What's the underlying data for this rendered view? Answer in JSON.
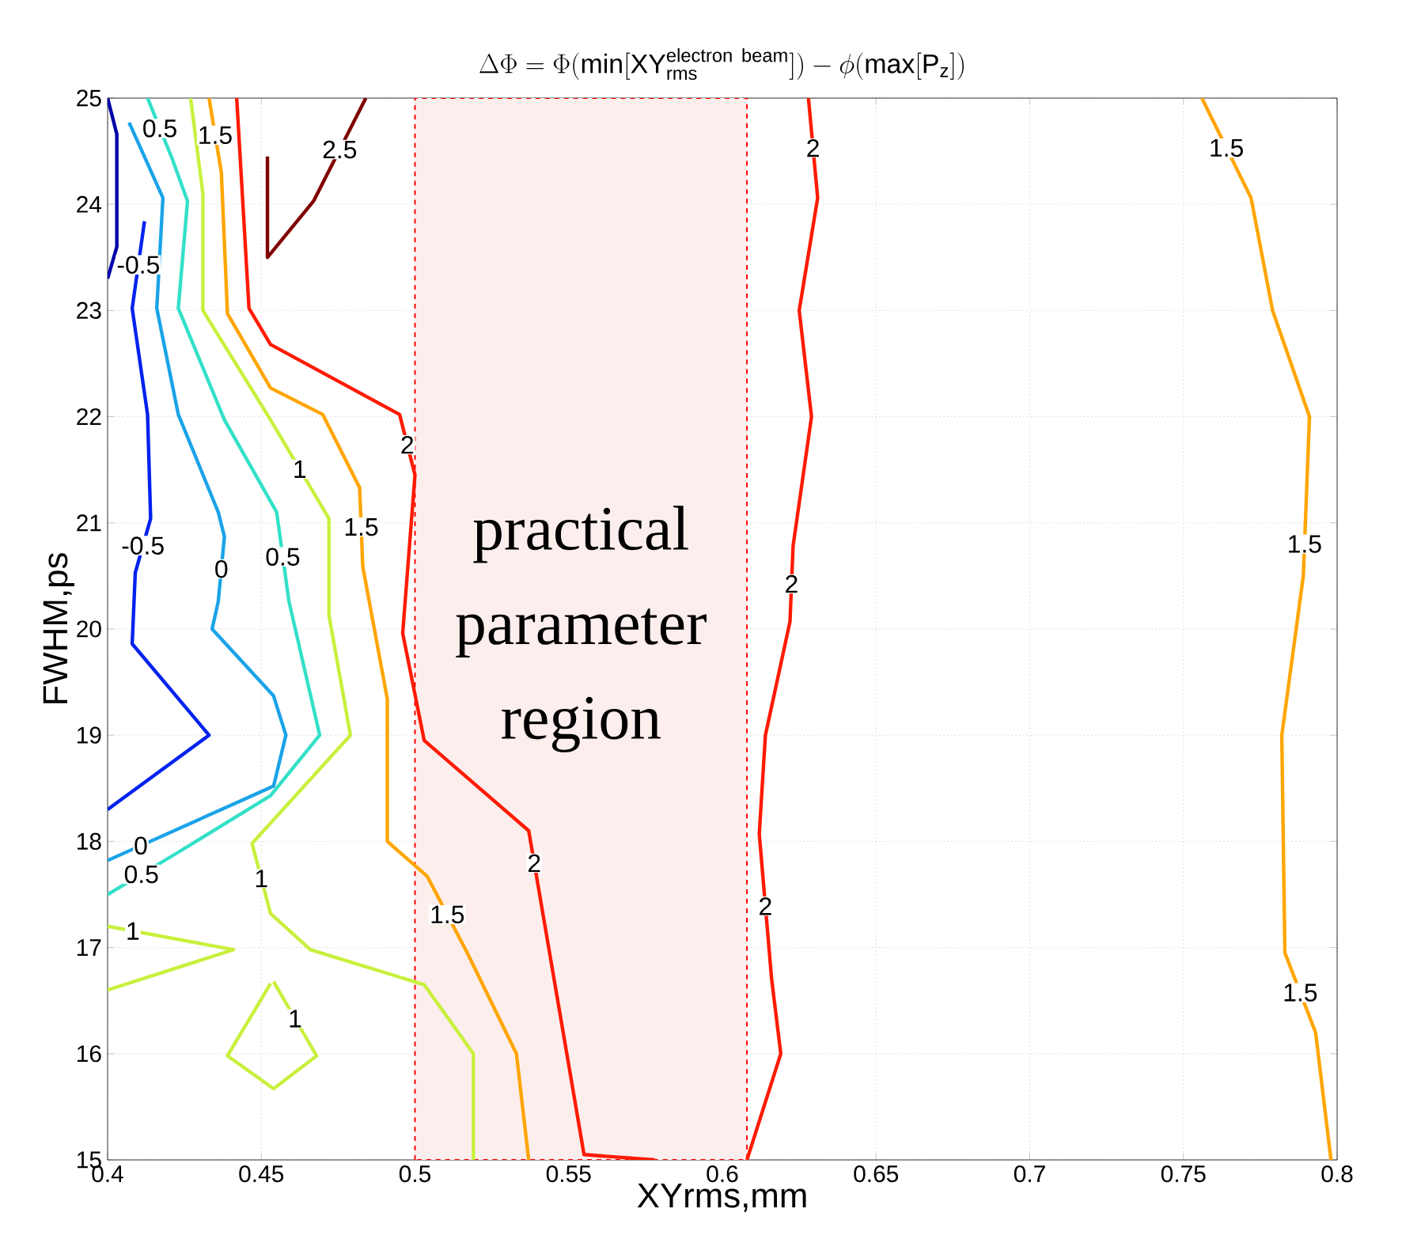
{
  "chart_data": {
    "type": "line",
    "title": "\\Delta\\Phi=\\Phi(\\mathrm{min}[\\mathrm{XY}_{\\mathrm{rms}}^{\\mathrm{electron\\ beam}}])-\\phi(\\mathrm{max}[\\mathrm{P}_{\\mathrm{z}}])",
    "xlabel": "XYrms,mm",
    "ylabel": "FWHM,ps",
    "xlim": [
      0.4,
      0.8
    ],
    "ylim": [
      15,
      25
    ],
    "xticks": [
      0.4,
      0.45,
      0.5,
      0.55,
      0.6,
      0.65,
      0.7,
      0.75,
      0.8
    ],
    "yticks": [
      15,
      16,
      17,
      18,
      19,
      20,
      21,
      22,
      23,
      24,
      25
    ],
    "grid": true,
    "marker": "none",
    "line_style": "solid",
    "series": [
      {
        "color": "#0000aa",
        "x": [
          0.4,
          0.403,
          0.403,
          0.4
        ],
        "values": [
          23.3,
          23.6,
          24.66,
          25
        ]
      },
      {
        "color": "#0022ee",
        "x": [
          0.412,
          0.408,
          0.413,
          0.414,
          0.409,
          0.408,
          0.433,
          0.4
        ],
        "values": [
          23.84,
          23.02,
          22.02,
          21.04,
          20.53,
          19.86,
          19.0,
          18.3
        ]
      },
      {
        "color": "#1aa3e8",
        "x": [
          0.407,
          0.418,
          0.416,
          0.423,
          0.436,
          0.438,
          0.436,
          0.434,
          0.454,
          0.458,
          0.454,
          0.4
        ],
        "values": [
          24.77,
          24.06,
          23.02,
          22.02,
          21.1,
          20.87,
          20.26,
          20.0,
          19.37,
          19.0,
          18.52,
          17.82
        ]
      },
      {
        "color": "#33e0c8",
        "x": [
          0.413,
          0.421,
          0.426,
          0.423,
          0.438,
          0.455,
          0.459,
          0.469,
          0.453,
          0.422,
          0.4
        ],
        "values": [
          25,
          24.43,
          24.03,
          23.02,
          21.97,
          21.1,
          20.26,
          19.0,
          18.43,
          17.88,
          17.5
        ]
      },
      {
        "color": "#c8f03c",
        "x": [
          0.427,
          0.431,
          0.431,
          0.453,
          0.472,
          0.472,
          0.479,
          0.447,
          0.453,
          0.466,
          0.503,
          0.519,
          0.519
        ],
        "values": [
          25,
          24.1,
          23.0,
          21.97,
          21.04,
          20.13,
          19.0,
          17.98,
          17.32,
          16.98,
          16.65,
          16.0,
          15
        ]
      },
      {
        "color": "#c8f03c",
        "x": [
          0.4,
          0.441,
          0.4
        ],
        "values": [
          17.2,
          16.98,
          16.6
        ]
      },
      {
        "color": "#c8f03c",
        "x": [
          0.454,
          0.468,
          0.454,
          0.439,
          0.453
        ],
        "values": [
          16.68,
          15.98,
          15.67,
          15.98,
          16.66
        ]
      },
      {
        "color": "#ffa500",
        "x": [
          0.433,
          0.437,
          0.439,
          0.453,
          0.47,
          0.482,
          0.483,
          0.491,
          0.491,
          0.504,
          0.517,
          0.533,
          0.537
        ],
        "values": [
          25,
          24.3,
          22.97,
          22.27,
          22.02,
          21.33,
          20.59,
          19.34,
          18.0,
          17.67,
          16.95,
          16.0,
          15
        ]
      },
      {
        "color": "#ffa500",
        "x": [
          0.756,
          0.772,
          0.779,
          0.791,
          0.789,
          0.782,
          0.783,
          0.793,
          0.798
        ],
        "values": [
          25,
          24.06,
          23.0,
          22.0,
          20.5,
          19.0,
          16.95,
          16.2,
          15
        ]
      },
      {
        "color": "#ff1a00",
        "x": [
          0.442,
          0.446,
          0.453,
          0.495,
          0.5,
          0.496,
          0.503,
          0.537,
          0.555,
          0.578
        ],
        "values": [
          25,
          23.02,
          22.68,
          22.02,
          21.45,
          19.96,
          18.95,
          18.1,
          15.05,
          15
        ]
      },
      {
        "color": "#ff1a00",
        "x": [
          0.628,
          0.631,
          0.625,
          0.629,
          0.623,
          0.622,
          0.614,
          0.612,
          0.616,
          0.619,
          0.608
        ],
        "values": [
          25,
          24.06,
          23.0,
          22.0,
          20.78,
          20.07,
          19.0,
          18.07,
          16.71,
          16.0,
          15
        ]
      },
      {
        "color": "#800000",
        "x": [
          0.484,
          0.467,
          0.452,
          0.452
        ],
        "values": [
          25,
          24.03,
          23.5,
          24.45
        ]
      }
    ],
    "bands": [
      {
        "axis": "x",
        "from": 0.5,
        "to": 0.608,
        "label": "practical parameter region",
        "color": "#fdeeee"
      }
    ],
    "annotations": [
      {
        "text": "2",
        "x": 0.4975,
        "y": 21.735
      },
      {
        "text": "1.5",
        "x": 0.4825,
        "y": 20.96
      },
      {
        "text": "1",
        "x": 0.4625,
        "y": 21.505
      },
      {
        "text": "0.5",
        "x": 0.457,
        "y": 20.68
      },
      {
        "text": "0",
        "x": 0.437,
        "y": 20.565
      },
      {
        "text": "-0.5",
        "x": 0.4115,
        "y": 20.785
      },
      {
        "text": "0",
        "x": 0.4108,
        "y": 17.96
      },
      {
        "text": "0.5",
        "x": 0.411,
        "y": 17.69
      },
      {
        "text": "1",
        "x": 0.4082,
        "y": 17.156
      },
      {
        "text": "1",
        "x": 0.45,
        "y": 17.65
      },
      {
        "text": "1",
        "x": 0.461,
        "y": 16.33
      },
      {
        "text": "1.5",
        "x": 0.5105,
        "y": 17.31
      },
      {
        "text": "2",
        "x": 0.5388,
        "y": 17.795
      },
      {
        "text": "2",
        "x": 0.6295,
        "y": 24.53
      },
      {
        "text": "2",
        "x": 0.6225,
        "y": 20.425
      },
      {
        "text": "2",
        "x": 0.614,
        "y": 17.39
      },
      {
        "text": "1.5",
        "x": 0.764,
        "y": 24.53
      },
      {
        "text": "1.5",
        "x": 0.7894,
        "y": 20.8
      },
      {
        "text": "1.5",
        "x": 0.788,
        "y": 16.575
      },
      {
        "text": "2.5",
        "x": 0.4755,
        "y": 24.515
      },
      {
        "text": "1.5",
        "x": 0.435,
        "y": 24.65
      },
      {
        "text": "0.5",
        "x": 0.417,
        "y": 24.715
      },
      {
        "text": "-0.5",
        "x": 0.41,
        "y": 23.43
      }
    ]
  }
}
